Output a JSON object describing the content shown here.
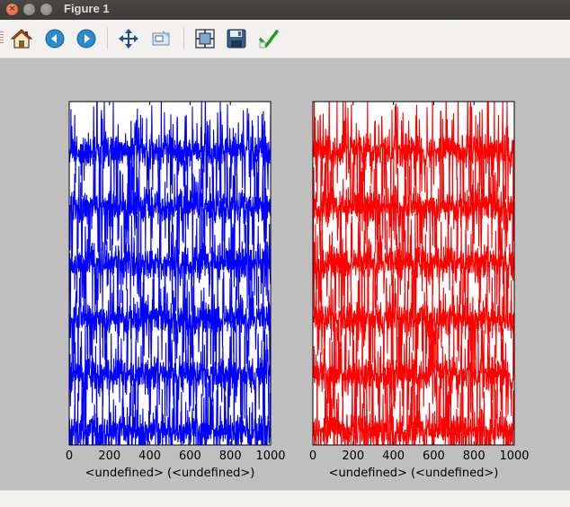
{
  "window": {
    "title": "Figure 1"
  },
  "toolbar": {
    "buttons": [
      {
        "name": "home",
        "icon": "home-icon"
      },
      {
        "name": "back",
        "icon": "back-arrow-icon"
      },
      {
        "name": "forward",
        "icon": "forward-arrow-icon"
      },
      {
        "name": "pan",
        "icon": "move-icon"
      },
      {
        "name": "zoom",
        "icon": "zoom-rect-icon"
      },
      {
        "name": "subplots",
        "icon": "subplots-icon"
      },
      {
        "name": "save",
        "icon": "save-icon"
      },
      {
        "name": "edit",
        "icon": "checkmark-icon"
      }
    ]
  },
  "colors": {
    "left_series": "#0000ff",
    "right_series": "#ff0000",
    "background": "#bfbfbf"
  },
  "chart_data": [
    {
      "type": "line",
      "series_color": "#0000ff",
      "x_range": [
        0,
        1000
      ],
      "x_ticks": [
        "0",
        "200",
        "400",
        "600",
        "800",
        "1000"
      ],
      "xlabel": "<undefined> (<undefined>)",
      "ylabel": "",
      "y_ticks_visible": false,
      "trace_count": 6,
      "description_note_hidden": true
    },
    {
      "type": "line",
      "series_color": "#ff0000",
      "x_range": [
        0,
        1000
      ],
      "x_ticks": [
        "0",
        "200",
        "400",
        "600",
        "800",
        "1000"
      ],
      "xlabel": "<undefined> (<undefined>)",
      "ylabel": "",
      "y_ticks_visible": false,
      "trace_count": 6,
      "description_note_hidden": true
    }
  ]
}
